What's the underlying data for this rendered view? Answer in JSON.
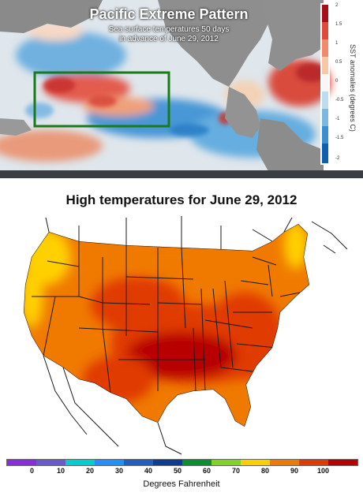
{
  "top_panel": {
    "title": "Pacific Extreme Pattern",
    "subtitle_line1": "Sea surface temperatures 50 days",
    "subtitle_line2": "in advance of June 29, 2012",
    "colorbar_label": "SST anomalies (degrees C)",
    "colorbar_ticks": [
      "2",
      "1.5",
      "1",
      "0.5",
      "0",
      "-0.5",
      "-1",
      "-1.5",
      "-2"
    ],
    "box_color": "#1a7a1a"
  },
  "bottom_panel": {
    "title": "High temperatures for June 29, 2012",
    "legend_ticks": [
      "0",
      "10",
      "20",
      "30",
      "40",
      "50",
      "60",
      "70",
      "80",
      "90",
      "100"
    ],
    "legend_colors": [
      "#8a2be2",
      "#6a5acd",
      "#00ced1",
      "#1e90ff",
      "#1f5fbf",
      "#0b3d91",
      "#0a8f2f",
      "#7fd321",
      "#ffd000",
      "#f07a00",
      "#e03a00",
      "#b80000"
    ],
    "legend_caption": "Degrees Fahrenheit"
  }
}
